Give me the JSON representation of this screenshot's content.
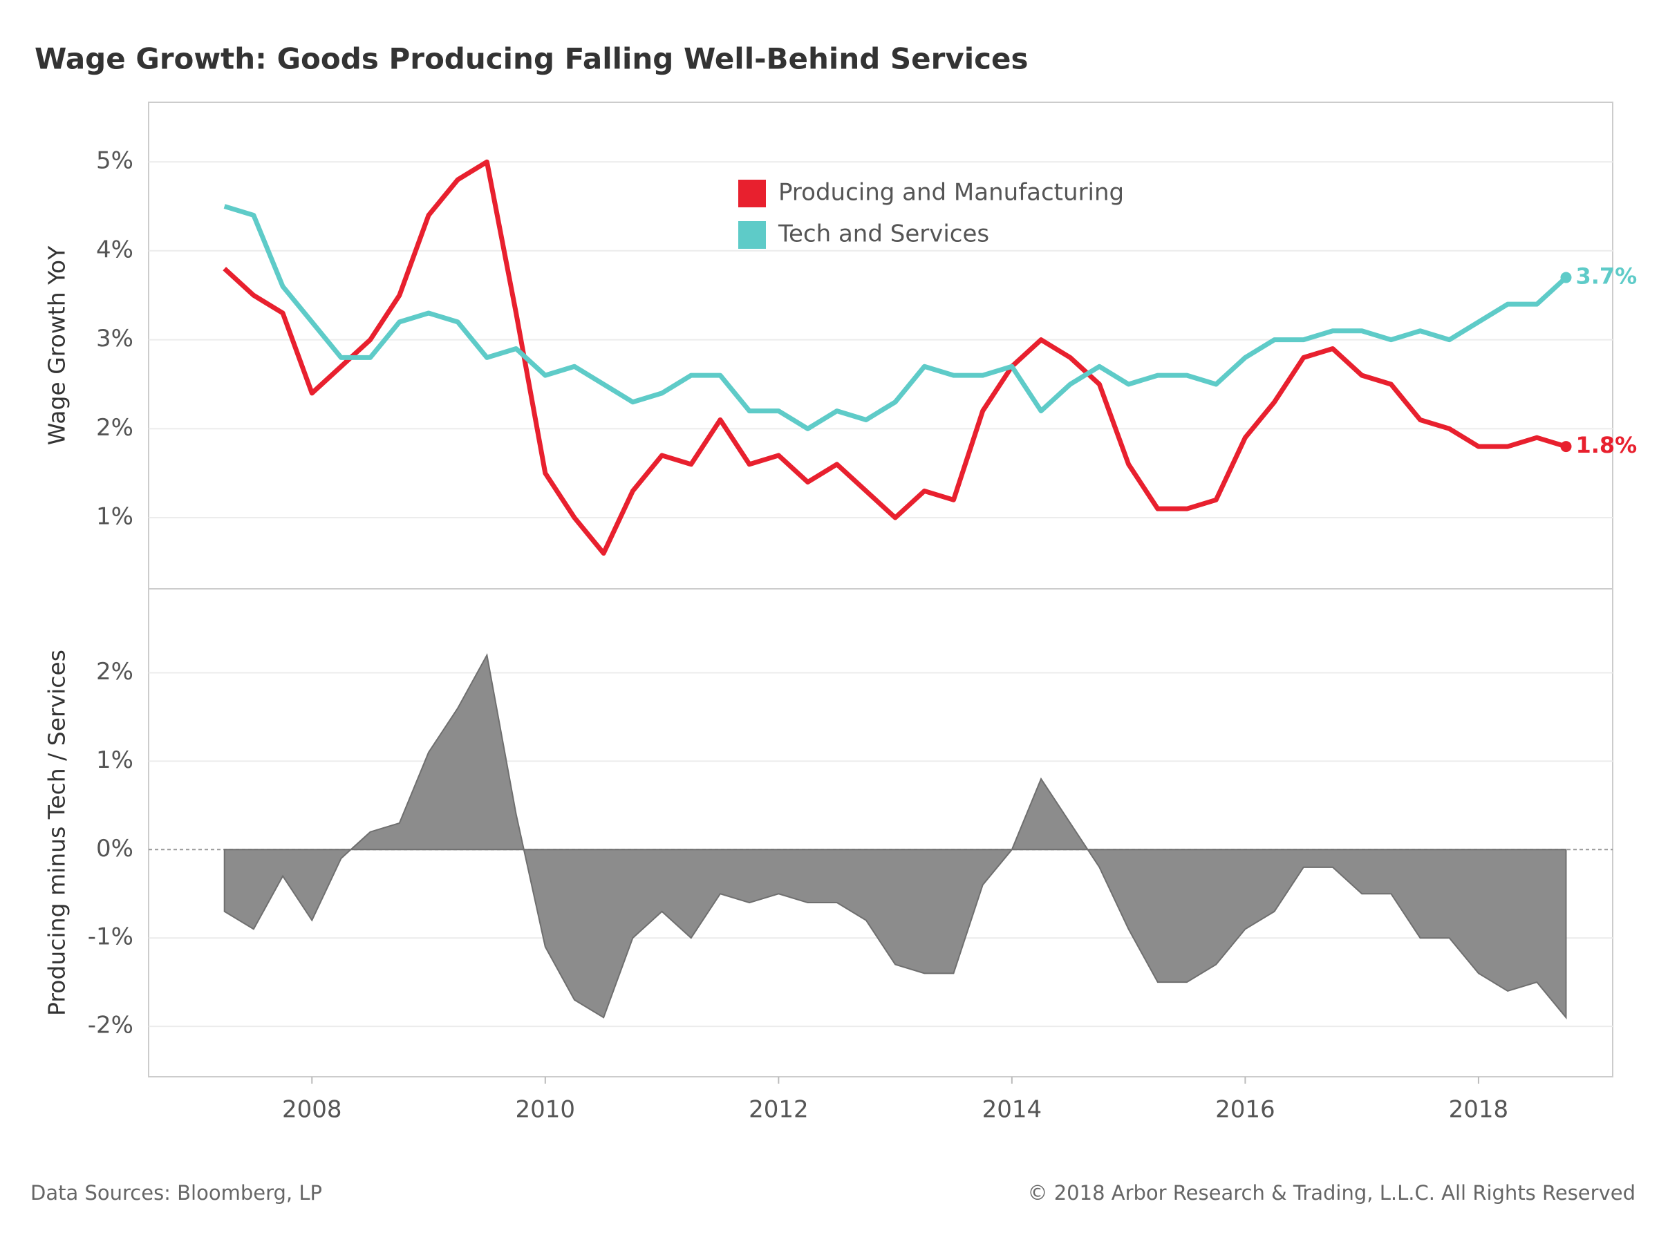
{
  "chart_data": [
    {
      "type": "line",
      "title": "Wage Growth: Goods Producing Falling Well-Behind Services",
      "ylabel": "Wage Growth YoY",
      "legend": "top-center",
      "grid": true,
      "x": [
        2007.25,
        2007.5,
        2007.75,
        2008,
        2008.25,
        2008.5,
        2008.75,
        2009,
        2009.25,
        2009.5,
        2009.75,
        2010,
        2010.25,
        2010.5,
        2010.75,
        2011,
        2011.25,
        2011.5,
        2011.75,
        2012,
        2012.25,
        2012.5,
        2012.75,
        2013,
        2013.25,
        2013.5,
        2013.75,
        2014,
        2014.25,
        2014.5,
        2014.75,
        2015,
        2015.25,
        2015.5,
        2015.75,
        2016,
        2016.25,
        2016.5,
        2016.75,
        2017,
        2017.25,
        2017.5,
        2017.75,
        2018,
        2018.25,
        2018.5,
        2018.75
      ],
      "xlim": [
        2006.6,
        2019.15
      ],
      "ylim": [
        0.2,
        5.67
      ],
      "yticks": [
        {
          "value": 1,
          "label": "1%"
        },
        {
          "value": 2,
          "label": "2%"
        },
        {
          "value": 3,
          "label": "3%"
        },
        {
          "value": 4,
          "label": "4%"
        },
        {
          "value": 5,
          "label": "5%"
        }
      ],
      "series": [
        {
          "name": "Producing and Manufacturing",
          "color": "#e8202e",
          "values": [
            3.8,
            3.5,
            3.3,
            2.4,
            2.7,
            3.0,
            3.5,
            4.4,
            4.8,
            5.0,
            3.3,
            1.5,
            1.0,
            0.6,
            1.3,
            1.7,
            1.6,
            2.1,
            1.6,
            1.7,
            1.4,
            1.6,
            1.3,
            1.0,
            1.3,
            1.2,
            2.2,
            2.7,
            3.0,
            2.8,
            2.5,
            1.6,
            1.1,
            1.1,
            1.2,
            1.9,
            2.3,
            2.8,
            2.9,
            2.6,
            2.5,
            2.1,
            2.0,
            1.8,
            1.8,
            1.9,
            1.8
          ],
          "value_labels": [
            null,
            null,
            null,
            null,
            null,
            null,
            null,
            null,
            null,
            null,
            null,
            null,
            null,
            null,
            null,
            null,
            null,
            null,
            null,
            null,
            null,
            null,
            null,
            null,
            null,
            null,
            null,
            null,
            null,
            null,
            null,
            null,
            null,
            null,
            null,
            null,
            null,
            null,
            null,
            null,
            null,
            null,
            null,
            null,
            null,
            null,
            "1.8%"
          ]
        },
        {
          "name": "Tech and Services",
          "color": "#5ecbc8",
          "values": [
            4.5,
            4.4,
            3.6,
            3.2,
            2.8,
            2.8,
            3.2,
            3.3,
            3.2,
            2.8,
            2.9,
            2.6,
            2.7,
            2.5,
            2.3,
            2.4,
            2.6,
            2.6,
            2.2,
            2.2,
            2.0,
            2.2,
            2.1,
            2.3,
            2.7,
            2.6,
            2.6,
            2.7,
            2.2,
            2.5,
            2.7,
            2.5,
            2.6,
            2.6,
            2.5,
            2.8,
            3.0,
            3.0,
            3.1,
            3.1,
            3.0,
            3.1,
            3.0,
            3.2,
            3.4,
            3.4,
            3.7
          ],
          "value_labels": [
            null,
            null,
            null,
            null,
            null,
            null,
            null,
            null,
            null,
            null,
            null,
            null,
            null,
            null,
            null,
            null,
            null,
            null,
            null,
            null,
            null,
            null,
            null,
            null,
            null,
            null,
            null,
            null,
            null,
            null,
            null,
            null,
            null,
            null,
            null,
            null,
            null,
            null,
            null,
            null,
            null,
            null,
            null,
            null,
            null,
            null,
            "3.7%"
          ]
        }
      ]
    },
    {
      "type": "area",
      "ylabel": "Producing minus Tech / Services",
      "color": "#8c8c8c",
      "grid": true,
      "x": [
        2007.25,
        2007.5,
        2007.75,
        2008,
        2008.25,
        2008.5,
        2008.75,
        2009,
        2009.25,
        2009.5,
        2009.75,
        2010,
        2010.25,
        2010.5,
        2010.75,
        2011,
        2011.25,
        2011.5,
        2011.75,
        2012,
        2012.25,
        2012.5,
        2012.75,
        2013,
        2013.25,
        2013.5,
        2013.75,
        2014,
        2014.25,
        2014.5,
        2014.75,
        2015,
        2015.25,
        2015.5,
        2015.75,
        2016,
        2016.25,
        2016.5,
        2016.75,
        2017,
        2017.25,
        2017.5,
        2017.75,
        2018,
        2018.25,
        2018.5,
        2018.75
      ],
      "values": [
        -0.7,
        -0.9,
        -0.3,
        -0.8,
        -0.1,
        0.2,
        0.3,
        1.1,
        1.6,
        2.2,
        0.4,
        -1.1,
        -1.7,
        -1.9,
        -1.0,
        -0.7,
        -1.0,
        -0.5,
        -0.6,
        -0.5,
        -0.6,
        -0.6,
        -0.8,
        -1.3,
        -1.4,
        -1.4,
        -0.4,
        0.0,
        0.8,
        0.3,
        -0.2,
        -0.9,
        -1.5,
        -1.5,
        -1.3,
        -0.9,
        -0.7,
        -0.2,
        -0.2,
        -0.5,
        -0.5,
        -1.0,
        -1.0,
        -1.4,
        -1.6,
        -1.5,
        -1.9
      ],
      "xlim": [
        2006.6,
        2019.15
      ],
      "xticks": [
        2008,
        2010,
        2012,
        2014,
        2016,
        2018
      ],
      "ylim": [
        -2.57,
        2.95
      ],
      "yticks": [
        {
          "value": -2,
          "label": "-2%"
        },
        {
          "value": -1,
          "label": "-1%"
        },
        {
          "value": 0,
          "label": "0%"
        },
        {
          "value": 1,
          "label": "1%"
        },
        {
          "value": 2,
          "label": "2%"
        }
      ]
    }
  ],
  "footer": {
    "source": "Data Sources: Bloomberg, LP",
    "copyright": "© 2018 Arbor Research & Trading, L.L.C. All Rights Reserved"
  }
}
